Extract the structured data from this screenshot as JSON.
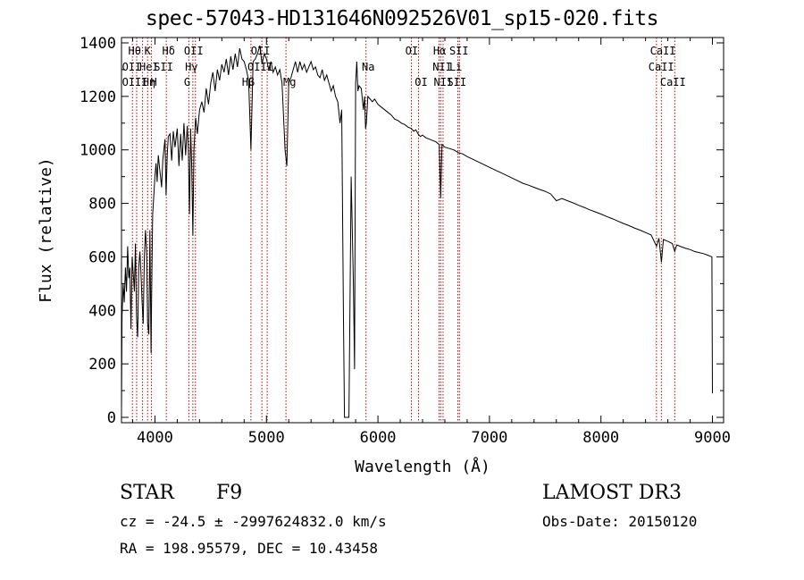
{
  "chart_data": {
    "type": "line",
    "title": "spec-57043-HD131646N092526V01_sp15-020.fits",
    "xlabel": "Wavelength (Å)",
    "ylabel": "Flux (relative)",
    "xlim": [
      3700,
      9100
    ],
    "ylim": [
      -20,
      1420
    ],
    "xticks": [
      4000,
      5000,
      6000,
      7000,
      8000,
      9000
    ],
    "yticks": [
      0,
      200,
      400,
      600,
      800,
      1000,
      1200,
      1400
    ],
    "series": [
      {
        "name": "spectrum",
        "points": [
          [
            3700,
            20
          ],
          [
            3705,
            380
          ],
          [
            3715,
            500
          ],
          [
            3725,
            430
          ],
          [
            3735,
            560
          ],
          [
            3745,
            470
          ],
          [
            3755,
            640
          ],
          [
            3765,
            520
          ],
          [
            3775,
            560
          ],
          [
            3785,
            330
          ],
          [
            3795,
            600
          ],
          [
            3805,
            540
          ],
          [
            3815,
            470
          ],
          [
            3825,
            650
          ],
          [
            3835,
            380
          ],
          [
            3845,
            300
          ],
          [
            3855,
            560
          ],
          [
            3865,
            620
          ],
          [
            3875,
            540
          ],
          [
            3885,
            430
          ],
          [
            3895,
            350
          ],
          [
            3905,
            600
          ],
          [
            3915,
            700
          ],
          [
            3925,
            620
          ],
          [
            3935,
            350
          ],
          [
            3945,
            310
          ],
          [
            3955,
            700
          ],
          [
            3965,
            240
          ],
          [
            3970,
            450
          ],
          [
            3980,
            760
          ],
          [
            3990,
            830
          ],
          [
            4000,
            900
          ],
          [
            4010,
            950
          ],
          [
            4020,
            880
          ],
          [
            4030,
            980
          ],
          [
            4040,
            940
          ],
          [
            4050,
            900
          ],
          [
            4060,
            860
          ],
          [
            4070,
            960
          ],
          [
            4080,
            1000
          ],
          [
            4090,
            1040
          ],
          [
            4100,
            830
          ],
          [
            4110,
            980
          ],
          [
            4120,
            1050
          ],
          [
            4135,
            1060
          ],
          [
            4150,
            960
          ],
          [
            4165,
            1070
          ],
          [
            4180,
            1010
          ],
          [
            4200,
            1080
          ],
          [
            4215,
            940
          ],
          [
            4230,
            1060
          ],
          [
            4245,
            960
          ],
          [
            4260,
            1100
          ],
          [
            4275,
            980
          ],
          [
            4290,
            1090
          ],
          [
            4300,
            1000
          ],
          [
            4310,
            760
          ],
          [
            4320,
            1080
          ],
          [
            4330,
            940
          ],
          [
            4340,
            680
          ],
          [
            4350,
            1000
          ],
          [
            4365,
            1120
          ],
          [
            4380,
            1060
          ],
          [
            4400,
            1150
          ],
          [
            4420,
            1180
          ],
          [
            4440,
            1140
          ],
          [
            4460,
            1230
          ],
          [
            4480,
            1170
          ],
          [
            4500,
            1250
          ],
          [
            4520,
            1290
          ],
          [
            4540,
            1220
          ],
          [
            4560,
            1300
          ],
          [
            4580,
            1260
          ],
          [
            4600,
            1320
          ],
          [
            4620,
            1290
          ],
          [
            4640,
            1340
          ],
          [
            4660,
            1280
          ],
          [
            4680,
            1350
          ],
          [
            4700,
            1300
          ],
          [
            4720,
            1360
          ],
          [
            4740,
            1310
          ],
          [
            4760,
            1380
          ],
          [
            4780,
            1340
          ],
          [
            4800,
            1330
          ],
          [
            4820,
            1300
          ],
          [
            4840,
            1260
          ],
          [
            4861,
            1000
          ],
          [
            4880,
            1330
          ],
          [
            4900,
            1340
          ],
          [
            4920,
            1360
          ],
          [
            4940,
            1390
          ],
          [
            4960,
            1320
          ],
          [
            4980,
            1360
          ],
          [
            5000,
            1340
          ],
          [
            5020,
            1300
          ],
          [
            5040,
            1330
          ],
          [
            5060,
            1290
          ],
          [
            5080,
            1310
          ],
          [
            5100,
            1280
          ],
          [
            5120,
            1300
          ],
          [
            5140,
            1250
          ],
          [
            5167,
            1000
          ],
          [
            5183,
            940
          ],
          [
            5200,
            1250
          ],
          [
            5220,
            1270
          ],
          [
            5240,
            1300
          ],
          [
            5260,
            1330
          ],
          [
            5280,
            1290
          ],
          [
            5300,
            1330
          ],
          [
            5320,
            1300
          ],
          [
            5340,
            1320
          ],
          [
            5360,
            1290
          ],
          [
            5380,
            1310
          ],
          [
            5400,
            1330
          ],
          [
            5420,
            1300
          ],
          [
            5440,
            1310
          ],
          [
            5460,
            1280
          ],
          [
            5480,
            1270
          ],
          [
            5500,
            1300
          ],
          [
            5520,
            1260
          ],
          [
            5540,
            1280
          ],
          [
            5560,
            1250
          ],
          [
            5580,
            1220
          ],
          [
            5600,
            1240
          ],
          [
            5620,
            1200
          ],
          [
            5640,
            1180
          ],
          [
            5660,
            1100
          ],
          [
            5675,
            1150
          ],
          [
            5690,
            400
          ],
          [
            5700,
            0
          ],
          [
            5720,
            0
          ],
          [
            5740,
            0
          ],
          [
            5760,
            900
          ],
          [
            5780,
            500
          ],
          [
            5790,
            180
          ],
          [
            5800,
            1250
          ],
          [
            5810,
            1330
          ],
          [
            5820,
            1220
          ],
          [
            5830,
            1240
          ],
          [
            5850,
            1230
          ],
          [
            5870,
            1150
          ],
          [
            5880,
            1200
          ],
          [
            5889,
            1080
          ],
          [
            5896,
            1100
          ],
          [
            5910,
            1200
          ],
          [
            5930,
            1190
          ],
          [
            5950,
            1180
          ],
          [
            5970,
            1190
          ],
          [
            6000,
            1170
          ],
          [
            6030,
            1160
          ],
          [
            6060,
            1150
          ],
          [
            6090,
            1140
          ],
          [
            6120,
            1130
          ],
          [
            6150,
            1115
          ],
          [
            6180,
            1110
          ],
          [
            6210,
            1100
          ],
          [
            6240,
            1095
          ],
          [
            6270,
            1085
          ],
          [
            6300,
            1080
          ],
          [
            6320,
            1070
          ],
          [
            6340,
            1075
          ],
          [
            6360,
            1060
          ],
          [
            6380,
            1050
          ],
          [
            6400,
            1055
          ],
          [
            6430,
            1045
          ],
          [
            6460,
            1040
          ],
          [
            6490,
            1035
          ],
          [
            6520,
            1030
          ],
          [
            6550,
            1020
          ],
          [
            6563,
            820
          ],
          [
            6575,
            1020
          ],
          [
            6600,
            1010
          ],
          [
            6640,
            1005
          ],
          [
            6680,
            1000
          ],
          [
            6720,
            990
          ],
          [
            6760,
            985
          ],
          [
            6800,
            975
          ],
          [
            6850,
            965
          ],
          [
            6900,
            955
          ],
          [
            6950,
            945
          ],
          [
            7000,
            935
          ],
          [
            7050,
            925
          ],
          [
            7100,
            915
          ],
          [
            7150,
            905
          ],
          [
            7200,
            895
          ],
          [
            7250,
            885
          ],
          [
            7300,
            875
          ],
          [
            7350,
            868
          ],
          [
            7400,
            860
          ],
          [
            7450,
            852
          ],
          [
            7500,
            845
          ],
          [
            7550,
            835
          ],
          [
            7600,
            810
          ],
          [
            7650,
            818
          ],
          [
            7700,
            810
          ],
          [
            7750,
            802
          ],
          [
            7800,
            793
          ],
          [
            7850,
            785
          ],
          [
            7900,
            776
          ],
          [
            7950,
            768
          ],
          [
            8000,
            760
          ],
          [
            8050,
            751
          ],
          [
            8100,
            743
          ],
          [
            8150,
            734
          ],
          [
            8200,
            725
          ],
          [
            8250,
            717
          ],
          [
            8300,
            708
          ],
          [
            8350,
            700
          ],
          [
            8400,
            691
          ],
          [
            8450,
            682
          ],
          [
            8498,
            640
          ],
          [
            8520,
            670
          ],
          [
            8542,
            580
          ],
          [
            8560,
            665
          ],
          [
            8600,
            658
          ],
          [
            8640,
            650
          ],
          [
            8662,
            620
          ],
          [
            8680,
            645
          ],
          [
            8720,
            638
          ],
          [
            8760,
            632
          ],
          [
            8800,
            627
          ],
          [
            8840,
            620
          ],
          [
            8880,
            616
          ],
          [
            8920,
            612
          ],
          [
            8960,
            606
          ],
          [
            8995,
            600
          ],
          [
            9000,
            90
          ]
        ]
      }
    ],
    "line_markers": [
      {
        "wl": 3798,
        "label": "Hθ",
        "row": 1
      },
      {
        "wl": 3836,
        "label": "",
        "row": 0
      },
      {
        "wl": 3889,
        "label": "",
        "row": 0
      },
      {
        "wl": 3934,
        "label": "K",
        "row": 1
      },
      {
        "wl": 3969,
        "label": "",
        "row": 0
      },
      {
        "wl": 4102,
        "label": "Hδ",
        "row": 1
      },
      {
        "wl": 4304,
        "label": "",
        "row": 0
      },
      {
        "wl": 4340,
        "label": "Hγ",
        "row": 2
      },
      {
        "wl": 4363,
        "label": "",
        "row": 0
      },
      {
        "wl": 4861,
        "label": "",
        "row": 0
      },
      {
        "wl": 4959,
        "label": "",
        "row": 0
      },
      {
        "wl": 5007,
        "label": "",
        "row": 0
      },
      {
        "wl": 5175,
        "label": "",
        "row": 0
      },
      {
        "wl": 5893,
        "label": "Na",
        "row": 2
      },
      {
        "wl": 6300,
        "label": "",
        "row": 0
      },
      {
        "wl": 6364,
        "label": "",
        "row": 0
      },
      {
        "wl": 6548,
        "label": "",
        "row": 0
      },
      {
        "wl": 6563,
        "label": "Hα",
        "row": 1
      },
      {
        "wl": 6584,
        "label": "",
        "row": 0
      },
      {
        "wl": 6717,
        "label": "",
        "row": 0
      },
      {
        "wl": 6731,
        "label": "",
        "row": 0
      },
      {
        "wl": 8498,
        "label": "",
        "row": 0
      },
      {
        "wl": 8542,
        "label": "",
        "row": 0
      },
      {
        "wl": 8662,
        "label": "",
        "row": 0
      }
    ],
    "line_labels": [
      {
        "x": 3760,
        "row": 1,
        "text": "Hθ"
      },
      {
        "x": 3905,
        "row": 1,
        "text": "K"
      },
      {
        "x": 4065,
        "row": 1,
        "text": "Hδ"
      },
      {
        "x": 4260,
        "row": 1,
        "text": "OII"
      },
      {
        "x": 4860,
        "row": 1,
        "text": "OII"
      },
      {
        "x": 6245,
        "row": 1,
        "text": "OI"
      },
      {
        "x": 6495,
        "row": 1,
        "text": "Hα"
      },
      {
        "x": 6640,
        "row": 1,
        "text": "SII"
      },
      {
        "x": 8440,
        "row": 1,
        "text": "CaII"
      },
      {
        "x": 3705,
        "row": 2,
        "text": "OII"
      },
      {
        "x": 3860,
        "row": 2,
        "text": "HeI"
      },
      {
        "x": 3990,
        "row": 2,
        "text": "SII"
      },
      {
        "x": 4270,
        "row": 2,
        "text": "Hγ"
      },
      {
        "x": 4830,
        "row": 2,
        "text": "OIII"
      },
      {
        "x": 5855,
        "row": 2,
        "text": "Na"
      },
      {
        "x": 6490,
        "row": 2,
        "text": "NII"
      },
      {
        "x": 6640,
        "row": 2,
        "text": "Li"
      },
      {
        "x": 8425,
        "row": 2,
        "text": "CaII"
      },
      {
        "x": 3705,
        "row": 3,
        "text": "OIII"
      },
      {
        "x": 3890,
        "row": 3,
        "text": "Hη"
      },
      {
        "x": 3960,
        "row": 3,
        "text": "H"
      },
      {
        "x": 4260,
        "row": 3,
        "text": "G"
      },
      {
        "x": 4780,
        "row": 3,
        "text": "Hβ"
      },
      {
        "x": 5150,
        "row": 3,
        "text": "Mg"
      },
      {
        "x": 6330,
        "row": 3,
        "text": "OI"
      },
      {
        "x": 6500,
        "row": 3,
        "text": "NII"
      },
      {
        "x": 6620,
        "row": 3,
        "text": "SII"
      },
      {
        "x": 8530,
        "row": 3,
        "text": "CaII"
      }
    ]
  },
  "info": {
    "object_class": "STAR",
    "subclass": "F9",
    "survey": "LAMOST DR3",
    "cz": "cz = -24.5 ± -2997624832.0 km/s",
    "obs_date": "Obs-Date: 20150120",
    "radec": "RA = 198.95579, DEC =  10.43458"
  }
}
